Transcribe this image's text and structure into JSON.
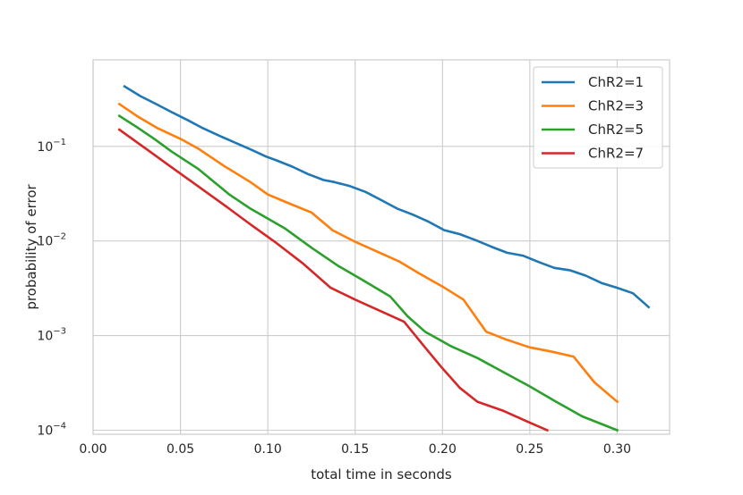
{
  "chart_data": {
    "type": "line",
    "title": "",
    "xlabel": "total time in seconds",
    "ylabel": "probability of error",
    "xlim": [
      0.0,
      0.33
    ],
    "ylim": [
      9.07e-05,
      0.82
    ],
    "yscale": "log",
    "grid": true,
    "legend_position": "top-right",
    "x_ticks": [
      0.0,
      0.05,
      0.1,
      0.15,
      0.2,
      0.25,
      0.3
    ],
    "x_tick_labels": [
      "0.00",
      "0.05",
      "0.10",
      "0.15",
      "0.20",
      "0.25",
      "0.30"
    ],
    "y_ticks": [
      {
        "value": 0.1,
        "base": "10",
        "exp": "−1"
      },
      {
        "value": 0.01,
        "base": "10",
        "exp": "−2"
      },
      {
        "value": 0.001,
        "base": "10",
        "exp": "−3"
      },
      {
        "value": 0.0001,
        "base": "10",
        "exp": "−4"
      }
    ],
    "series": [
      {
        "name": "ChR2=1",
        "color": "#1f77b4",
        "x": [
          0.018,
          0.027,
          0.036,
          0.045,
          0.054,
          0.063,
          0.072,
          0.081,
          0.09,
          0.099,
          0.105,
          0.114,
          0.123,
          0.132,
          0.138,
          0.147,
          0.156,
          0.165,
          0.174,
          0.183,
          0.192,
          0.201,
          0.21,
          0.219,
          0.228,
          0.237,
          0.246,
          0.255,
          0.264,
          0.273,
          0.282,
          0.291,
          0.3,
          0.309,
          0.318
        ],
        "y": [
          0.43,
          0.34,
          0.28,
          0.23,
          0.19,
          0.155,
          0.13,
          0.11,
          0.093,
          0.078,
          0.071,
          0.061,
          0.051,
          0.044,
          0.042,
          0.038,
          0.033,
          0.027,
          0.022,
          0.019,
          0.016,
          0.013,
          0.0118,
          0.0102,
          0.0087,
          0.0075,
          0.007,
          0.006,
          0.0052,
          0.0049,
          0.0043,
          0.0036,
          0.0032,
          0.0028,
          0.002
        ]
      },
      {
        "name": "ChR2=3",
        "color": "#ff7f0e",
        "x": [
          0.015,
          0.025,
          0.037,
          0.05,
          0.06,
          0.075,
          0.09,
          0.1,
          0.112,
          0.125,
          0.137,
          0.15,
          0.162,
          0.175,
          0.187,
          0.2,
          0.212,
          0.225,
          0.237,
          0.25,
          0.262,
          0.275,
          0.287,
          0.3
        ],
        "y": [
          0.28,
          0.21,
          0.155,
          0.12,
          0.095,
          0.062,
          0.042,
          0.031,
          0.025,
          0.02,
          0.013,
          0.0098,
          0.0078,
          0.0061,
          0.0045,
          0.0033,
          0.0024,
          0.0011,
          0.0009,
          0.00075,
          0.00068,
          0.0006,
          0.00032,
          0.0002
        ]
      },
      {
        "name": "ChR2=5",
        "color": "#2ca02c",
        "x": [
          0.015,
          0.025,
          0.035,
          0.045,
          0.06,
          0.078,
          0.09,
          0.11,
          0.125,
          0.14,
          0.155,
          0.17,
          0.18,
          0.19,
          0.205,
          0.22,
          0.235,
          0.25,
          0.265,
          0.28,
          0.3
        ],
        "y": [
          0.21,
          0.16,
          0.12,
          0.088,
          0.058,
          0.031,
          0.022,
          0.0135,
          0.0085,
          0.0055,
          0.0038,
          0.0026,
          0.0016,
          0.0011,
          0.00077,
          0.00058,
          0.00041,
          0.00029,
          0.0002,
          0.00014,
          0.0001
        ]
      },
      {
        "name": "ChR2=7",
        "color": "#d62728",
        "x": [
          0.015,
          0.03,
          0.045,
          0.06,
          0.075,
          0.09,
          0.105,
          0.12,
          0.136,
          0.15,
          0.165,
          0.178,
          0.19,
          0.2,
          0.21,
          0.22,
          0.235,
          0.25,
          0.26
        ],
        "y": [
          0.15,
          0.095,
          0.06,
          0.038,
          0.024,
          0.015,
          0.0095,
          0.0058,
          0.0032,
          0.0024,
          0.0018,
          0.0014,
          0.00075,
          0.00045,
          0.00028,
          0.0002,
          0.00016,
          0.00012,
          0.0001
        ]
      }
    ]
  }
}
